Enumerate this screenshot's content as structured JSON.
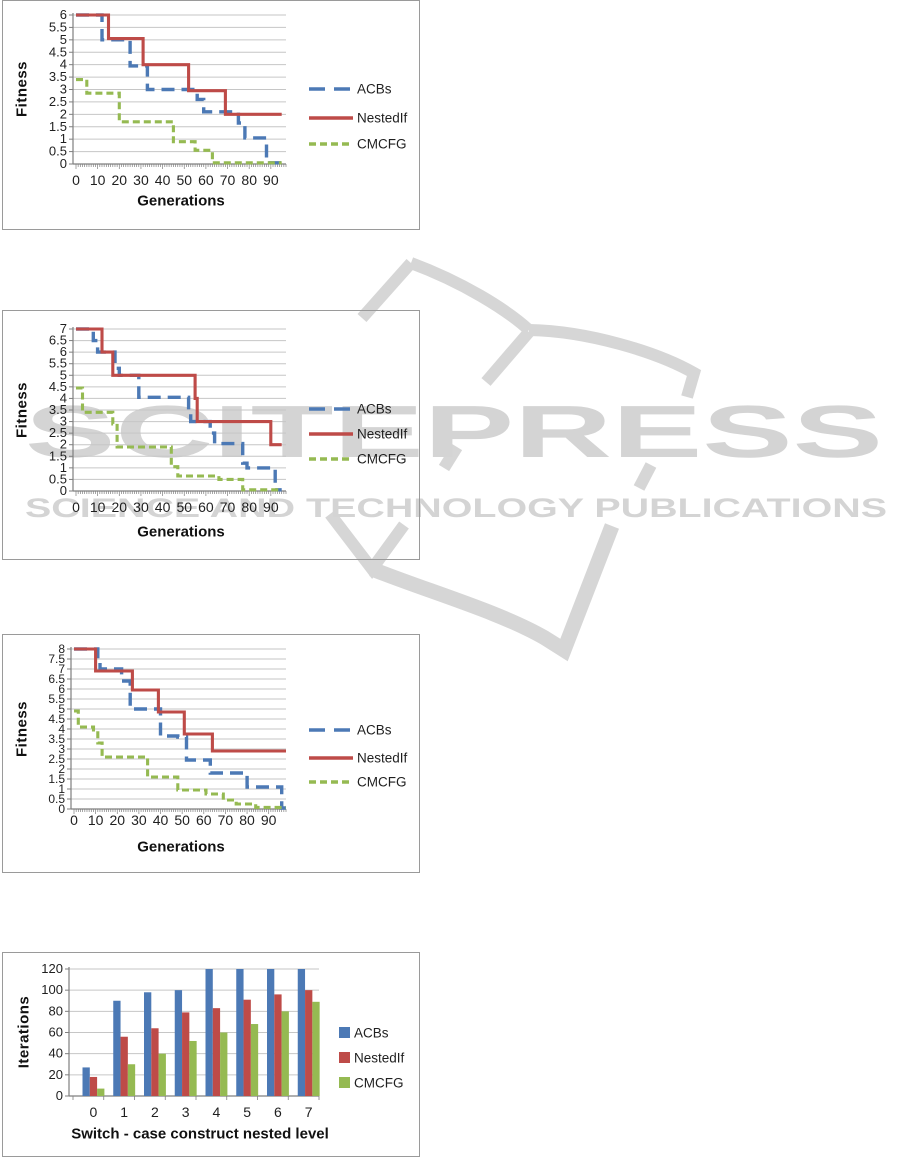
{
  "watermark": {
    "title": "SCITEPRESS",
    "subtitle": "SCIENCE AND TECHNOLOGY PUBLICATIONS",
    "color": "#d4d4d4",
    "book_icon": "open-book-outline-icon"
  },
  "chart_colors": {
    "acbs_blue": "#4C79B5",
    "nestedif_red": "#BE4B48",
    "cmcfg_green": "#95BA52",
    "gridline": "#c6c6c6",
    "axis": "#7f7f7f",
    "tick_text": "#1f1f1f"
  },
  "chart_data": [
    {
      "type": "line",
      "step": true,
      "title": "",
      "xlabel": "Generations",
      "ylabel": "Fitness",
      "xlim": [
        0,
        97
      ],
      "ylim": [
        0,
        6
      ],
      "ytick_step": 0.5,
      "xticks": [
        0,
        10,
        20,
        30,
        40,
        50,
        60,
        70,
        80,
        90
      ],
      "grid": true,
      "legend_position": "right",
      "series": [
        {
          "name": "ACBs",
          "color": "#4C79B5",
          "line_style": "long-dash",
          "points": [
            [
              0,
              6
            ],
            [
              12,
              6
            ],
            [
              12,
              5
            ],
            [
              25,
              5
            ],
            [
              25,
              3.95
            ],
            [
              33,
              3.95
            ],
            [
              33,
              3
            ],
            [
              56,
              3
            ],
            [
              56,
              2.6
            ],
            [
              59,
              2.6
            ],
            [
              59,
              2.1
            ],
            [
              75,
              2.1
            ],
            [
              75,
              1.65
            ],
            [
              78,
              1.65
            ],
            [
              78,
              1.05
            ],
            [
              88,
              1.05
            ],
            [
              88,
              0.05
            ],
            [
              95,
              0.05
            ]
          ]
        },
        {
          "name": "NestedIf",
          "color": "#BE4B48",
          "line_style": "solid",
          "points": [
            [
              0,
              6
            ],
            [
              15,
              6
            ],
            [
              15,
              5.05
            ],
            [
              31,
              5.05
            ],
            [
              31,
              4
            ],
            [
              52,
              4
            ],
            [
              52,
              2.95
            ],
            [
              69,
              2.95
            ],
            [
              69,
              2
            ],
            [
              95,
              2
            ]
          ]
        },
        {
          "name": "CMCFG",
          "color": "#95BA52",
          "line_style": "short-dash",
          "points": [
            [
              0,
              3.4
            ],
            [
              5,
              3.4
            ],
            [
              5,
              2.85
            ],
            [
              20,
              2.85
            ],
            [
              20,
              1.7
            ],
            [
              45,
              1.7
            ],
            [
              45,
              0.9
            ],
            [
              55,
              0.9
            ],
            [
              55,
              0.55
            ],
            [
              63,
              0.55
            ],
            [
              63,
              0.05
            ],
            [
              95,
              0.05
            ]
          ]
        }
      ]
    },
    {
      "type": "line",
      "step": true,
      "title": "",
      "xlabel": "Generations",
      "ylabel": "Fitness",
      "xlim": [
        0,
        97
      ],
      "ylim": [
        0,
        7
      ],
      "ytick_step": 0.5,
      "xticks": [
        0,
        10,
        20,
        30,
        40,
        50,
        60,
        70,
        80,
        90
      ],
      "grid": true,
      "legend_position": "right",
      "series": [
        {
          "name": "ACBs",
          "color": "#4C79B5",
          "line_style": "long-dash",
          "points": [
            [
              0,
              7
            ],
            [
              8,
              7
            ],
            [
              8,
              6.5
            ],
            [
              10,
              6.5
            ],
            [
              10,
              6
            ],
            [
              18,
              6
            ],
            [
              18,
              5.3
            ],
            [
              20,
              5.3
            ],
            [
              20,
              5
            ],
            [
              29,
              5
            ],
            [
              29,
              4.05
            ],
            [
              52,
              4.05
            ],
            [
              52,
              3.5
            ],
            [
              53,
              3.5
            ],
            [
              53,
              3
            ],
            [
              62,
              3
            ],
            [
              62,
              2.5
            ],
            [
              64,
              2.5
            ],
            [
              64,
              2.05
            ],
            [
              77,
              2.05
            ],
            [
              77,
              1.2
            ],
            [
              79,
              1.2
            ],
            [
              79,
              1
            ],
            [
              92,
              1
            ],
            [
              92,
              0.05
            ],
            [
              95,
              0.05
            ]
          ]
        },
        {
          "name": "NestedIf",
          "color": "#BE4B48",
          "line_style": "solid",
          "points": [
            [
              0,
              7
            ],
            [
              12,
              7
            ],
            [
              12,
              6
            ],
            [
              17,
              6
            ],
            [
              17,
              5
            ],
            [
              55,
              5
            ],
            [
              55,
              4
            ],
            [
              56,
              4
            ],
            [
              56,
              3
            ],
            [
              90,
              3
            ],
            [
              90,
              2
            ],
            [
              95,
              2
            ]
          ]
        },
        {
          "name": "CMCFG",
          "color": "#95BA52",
          "line_style": "short-dash",
          "points": [
            [
              0,
              4.45
            ],
            [
              3,
              4.45
            ],
            [
              3,
              3.4
            ],
            [
              17,
              3.4
            ],
            [
              17,
              2.9
            ],
            [
              19,
              2.9
            ],
            [
              19,
              1.9
            ],
            [
              44,
              1.9
            ],
            [
              44,
              1.05
            ],
            [
              47,
              1.05
            ],
            [
              47,
              0.65
            ],
            [
              66,
              0.65
            ],
            [
              66,
              0.5
            ],
            [
              77,
              0.5
            ],
            [
              77,
              0.05
            ],
            [
              95,
              0.05
            ]
          ]
        }
      ]
    },
    {
      "type": "line",
      "step": true,
      "title": "",
      "xlabel": "Generations",
      "ylabel": "Fitness",
      "xlim": [
        0,
        98
      ],
      "ylim": [
        0,
        8
      ],
      "ytick_step": 0.5,
      "xticks": [
        0,
        10,
        20,
        30,
        40,
        50,
        60,
        70,
        80,
        90
      ],
      "grid": true,
      "legend_position": "right",
      "series": [
        {
          "name": "ACBs",
          "color": "#4C79B5",
          "line_style": "long-dash",
          "points": [
            [
              0,
              8
            ],
            [
              11,
              8
            ],
            [
              11,
              7.5
            ],
            [
              12,
              7.5
            ],
            [
              12,
              7
            ],
            [
              22,
              7
            ],
            [
              22,
              6.4
            ],
            [
              26,
              6.4
            ],
            [
              26,
              5
            ],
            [
              40,
              5
            ],
            [
              40,
              3.65
            ],
            [
              48,
              3.65
            ],
            [
              48,
              3.6
            ],
            [
              52,
              3.6
            ],
            [
              52,
              2.45
            ],
            [
              63,
              2.45
            ],
            [
              63,
              1.8
            ],
            [
              80,
              1.8
            ],
            [
              80,
              1.1
            ],
            [
              96,
              1.1
            ],
            [
              96,
              0.05
            ],
            [
              98,
              0.05
            ]
          ]
        },
        {
          "name": "NestedIf",
          "color": "#BE4B48",
          "line_style": "solid",
          "points": [
            [
              0,
              8
            ],
            [
              10,
              8
            ],
            [
              10,
              6.9
            ],
            [
              27,
              6.9
            ],
            [
              27,
              5.95
            ],
            [
              39,
              5.95
            ],
            [
              39,
              4.85
            ],
            [
              51,
              4.85
            ],
            [
              51,
              3.75
            ],
            [
              64,
              3.75
            ],
            [
              64,
              2.9
            ],
            [
              98,
              2.9
            ]
          ]
        },
        {
          "name": "CMCFG",
          "color": "#95BA52",
          "line_style": "short-dash",
          "points": [
            [
              0,
              4.9
            ],
            [
              2,
              4.9
            ],
            [
              2,
              4.1
            ],
            [
              9,
              4.1
            ],
            [
              9,
              3.95
            ],
            [
              11,
              3.95
            ],
            [
              11,
              3.3
            ],
            [
              13,
              3.3
            ],
            [
              13,
              2.6
            ],
            [
              34,
              2.6
            ],
            [
              34,
              1.6
            ],
            [
              48,
              1.6
            ],
            [
              48,
              0.95
            ],
            [
              61,
              0.95
            ],
            [
              61,
              0.75
            ],
            [
              69,
              0.75
            ],
            [
              69,
              0.45
            ],
            [
              75,
              0.45
            ],
            [
              75,
              0.25
            ],
            [
              84,
              0.25
            ],
            [
              84,
              0.08
            ],
            [
              98,
              0.08
            ]
          ]
        }
      ]
    },
    {
      "type": "bar",
      "title": "",
      "xlabel": "Switch - case construct nested level",
      "ylabel": "Iterations",
      "ylim": [
        0,
        120
      ],
      "ytick_step": 20,
      "categories": [
        "0",
        "1",
        "2",
        "3",
        "4",
        "5",
        "6",
        "7"
      ],
      "grid": true,
      "legend_position": "right",
      "series": [
        {
          "name": "ACBs",
          "color": "#4C79B5",
          "values": [
            27,
            90,
            98,
            100,
            120,
            120,
            120,
            120
          ]
        },
        {
          "name": "NestedIf",
          "color": "#BE4B48",
          "values": [
            18,
            56,
            64,
            79,
            83,
            91,
            96,
            100
          ]
        },
        {
          "name": "CMCFG",
          "color": "#95BA52",
          "values": [
            7,
            30,
            40,
            52,
            60,
            68,
            80,
            89
          ]
        }
      ]
    }
  ]
}
